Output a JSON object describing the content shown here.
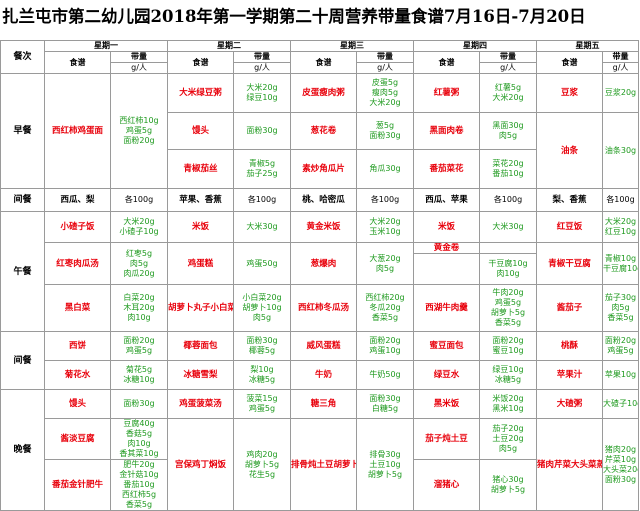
{
  "title": "扎兰屯市第二幼儿园2018年第一学期第二十周营养带量食谱7月16日-7月20日",
  "header": {
    "meal_label": "餐次",
    "days": [
      "星期一",
      "星期二",
      "星期三",
      "星期四",
      "星期五"
    ],
    "recipe_label": "食谱",
    "amount_label": "带量",
    "unit_label": "g/人"
  },
  "meals": {
    "breakfast": "早餐",
    "snack1": "间餐",
    "lunch": "午餐",
    "snack2": "间餐",
    "dinner": "晚餐"
  },
  "rows": [
    {
      "cells": [
        {
          "dish": "",
          "qty": ""
        },
        {
          "dish": "大米绿豆粥",
          "qty": "大米20g\n绿豆10g"
        },
        {
          "dish": "皮蛋瘦肉粥",
          "qty": "皮蛋5g\n瘦肉5g\n大米20g"
        },
        {
          "dish": "红薯粥",
          "qty": "红薯5g\n大米20g"
        },
        {
          "dish": "豆浆",
          "qty": "豆浆20g"
        }
      ],
      "monday_dish": "西红柿鸡蛋面",
      "monday_qty": "西红柿10g\n鸡蛋5g\n面粉20g"
    },
    {
      "cells": [
        {
          "dish": "馒头",
          "qty": "面粉30g"
        },
        {
          "dish": "葱花卷",
          "qty": "葱5g\n面粉30g"
        },
        {
          "dish": "黑面肉卷",
          "qty": "黑面30g\n肉5g"
        },
        {
          "dish": "油条",
          "qty": "油条30g"
        }
      ]
    },
    {
      "cells": [
        {
          "dish": "青椒茄丝",
          "qty": "青椒5g\n茄子25g"
        },
        {
          "dish": "素炒角瓜片",
          "qty": "角瓜30g"
        },
        {
          "dish": "番茄菜花",
          "qty": "菜花20g\n番茄10g"
        }
      ]
    }
  ],
  "snack1": [
    {
      "dish": "西瓜、梨",
      "qty": "各100g"
    },
    {
      "dish": "苹果、香蕉",
      "qty": "各100g"
    },
    {
      "dish": "桃、哈密瓜",
      "qty": "各100g"
    },
    {
      "dish": "西瓜、苹果",
      "qty": "各100g"
    },
    {
      "dish": "梨、香蕉",
      "qty": "各100g"
    }
  ],
  "lunch": [
    [
      {
        "dish": "小碴子饭",
        "qty": "大米20g\n小碴子10g"
      },
      {
        "dish": "米饭",
        "qty": "大米30g"
      },
      {
        "dish": "黄金米饭",
        "qty": "大米20g\n玉米10g"
      },
      {
        "dish": "米饭",
        "qty": "大米30g"
      },
      {
        "dish": "红豆饭",
        "qty": "大米20g\n红豆10g"
      }
    ],
    [
      {
        "dish": "红枣肉瓜汤",
        "qty": "红枣5g\n肉5g\n肉瓜20g"
      },
      {
        "dish": "鸡蛋糕",
        "qty": "鸡蛋50g"
      },
      {
        "dish": "葱爆肉",
        "qty": "大葱20g\n肉5g"
      },
      {
        "dish": "黄金卷",
        "qty": "玉米面10g\n面粉20g"
      },
      {
        "dish": "青椒干豆腐",
        "qty": "青椒10g\n干豆腐10g"
      }
    ],
    [
      {
        "dish": "",
        "qty": ""
      },
      {
        "dish": "",
        "qty": ""
      },
      {
        "dish": "",
        "qty": ""
      },
      {
        "dish": "",
        "qty": "干豆腐10g\n肉10g"
      },
      {
        "dish": "",
        "qty": ""
      }
    ],
    [
      {
        "dish": "黑白菜",
        "qty": "白菜20g\n木耳20g\n肉10g"
      },
      {
        "dish": "胡萝卜丸子小白菜",
        "qty": "小白菜20g\n胡萝卜10g\n肉5g"
      },
      {
        "dish": "西红柿冬瓜汤",
        "qty": "西红柿20g\n冬瓜20g\n香菜5g"
      },
      {
        "dish": "西湖牛肉羹",
        "qty": "牛肉20g\n鸡蛋5g\n胡萝卜5g\n香菜5g"
      },
      {
        "dish": "酱茄子",
        "qty": "茄子30g\n肉5g\n香菜5g"
      }
    ]
  ],
  "snack2": [
    [
      {
        "dish": "西饼",
        "qty": "面粉20g\n鸡蛋5g"
      },
      {
        "dish": "椰蓉面包",
        "qty": "面粉30g\n椰蓉5g"
      },
      {
        "dish": "威风蛋糕",
        "qty": "面粉20g\n鸡蛋10g"
      },
      {
        "dish": "蜜豆面包",
        "qty": "面粉20g\n蜜豆10g"
      },
      {
        "dish": "桃酥",
        "qty": "面粉20g\n鸡蛋5g"
      }
    ],
    [
      {
        "dish": "菊花水",
        "qty": "菊花5g\n冰糖10g"
      },
      {
        "dish": "冰糖雪梨",
        "qty": "梨10g\n冰糖5g"
      },
      {
        "dish": "牛奶",
        "qty": "牛奶50g"
      },
      {
        "dish": "绿豆水",
        "qty": "绿豆10g\n冰糖5g"
      },
      {
        "dish": "苹果汁",
        "qty": "苹果10g"
      }
    ]
  ],
  "dinner": [
    [
      {
        "dish": "馒头",
        "qty": "面粉30g"
      },
      {
        "dish": "鸡蛋菠菜汤",
        "qty": "菠菜15g\n鸡蛋5g"
      },
      {
        "dish": "糖三角",
        "qty": "面粉30g\n白糖5g"
      },
      {
        "dish": "黑米饭",
        "qty": "米饭20g\n黑米10g"
      },
      {
        "dish": "大碴粥",
        "qty": "大碴子10g"
      }
    ],
    [
      {
        "dish": "酱淡豆腐",
        "qty": "豆腐40g\n香菇5g\n肉10g\n香其菜10g"
      },
      {
        "dish": "宫保鸡丁焖饭",
        "qty": "鸡肉20g\n胡萝卜5g\n花生5g"
      },
      {
        "dish": "排骨炖土豆胡萝卜",
        "qty": "排骨30g\n土豆10g\n胡萝卜5g"
      },
      {
        "dish": "茄子炖土豆",
        "qty": "茄子20g\n土豆20g\n肉5g"
      },
      {
        "dish": "猪肉芹菜大头菜蒸饺",
        "qty": "猪肉20g\n芹菜10g\n大头菜20g\n面粉30g"
      }
    ],
    [
      {
        "dish": "番茄金针肥牛",
        "qty": "肥牛20g\n金针菇10g\n番茄10g\n西红柿5g\n香菜5g"
      },
      {
        "dish": "",
        "qty": ""
      },
      {
        "dish": "",
        "qty": ""
      },
      {
        "dish": "溜猪心",
        "qty": "猪心30g\n胡萝卜5g"
      },
      {
        "dish": "",
        "qty": ""
      }
    ]
  ]
}
